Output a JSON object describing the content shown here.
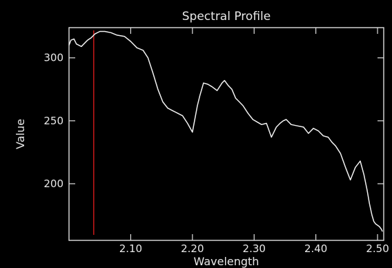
{
  "chart_data": {
    "type": "line",
    "title": "Spectral Profile",
    "xlabel": "Wavelength",
    "ylabel": "Value",
    "xlim": [
      2.0,
      2.51
    ],
    "ylim": [
      155,
      324
    ],
    "xticks": [
      2.1,
      2.2,
      2.3,
      2.4,
      2.5
    ],
    "xtick_labels": [
      "2.10",
      "2.20",
      "2.30",
      "2.40",
      "2.50"
    ],
    "yticks": [
      200,
      250,
      300
    ],
    "ytick_labels": [
      "200",
      "250",
      "300"
    ],
    "grid": false,
    "legend": "none",
    "colors": {
      "background": "#000000",
      "axes": "#e0e0e0",
      "series": "#f2f2f2",
      "marker_line": "#c01818"
    },
    "marker_x": 2.04,
    "series": [
      {
        "x": [
          2.0,
          2.003,
          2.008,
          2.012,
          2.02,
          2.03,
          2.036,
          2.042,
          2.05,
          2.058,
          2.068,
          2.078,
          2.09,
          2.1,
          2.11,
          2.12,
          2.128,
          2.136,
          2.144,
          2.152,
          2.16,
          2.168,
          2.176,
          2.184,
          2.192,
          2.2,
          2.208,
          2.212,
          2.218,
          2.225,
          2.232,
          2.24,
          2.248,
          2.252,
          2.258,
          2.264,
          2.27,
          2.276,
          2.282,
          2.29,
          2.298,
          2.305,
          2.312,
          2.32,
          2.328,
          2.336,
          2.342,
          2.347,
          2.352,
          2.36,
          2.37,
          2.38,
          2.388,
          2.396,
          2.404,
          2.412,
          2.42,
          2.426,
          2.432,
          2.44,
          2.448,
          2.456,
          2.464,
          2.472,
          2.478,
          2.483,
          2.487,
          2.491,
          2.494,
          2.497,
          2.5,
          2.503,
          2.506,
          2.508
        ],
        "values": [
          310,
          314,
          315,
          311,
          309,
          314,
          316,
          319,
          321,
          321,
          320,
          318,
          317,
          313,
          308,
          306,
          300,
          288,
          275,
          265,
          260,
          258,
          256,
          254,
          248,
          241,
          262,
          270,
          280,
          279,
          277,
          274,
          280,
          282,
          278,
          275,
          268,
          265,
          262,
          256,
          251,
          249,
          247,
          248,
          237,
          245,
          248,
          250,
          251,
          247,
          246,
          245,
          240,
          244,
          242,
          238,
          237,
          233,
          230,
          224,
          213,
          203,
          213,
          218,
          207,
          195,
          184,
          175,
          170,
          168,
          167,
          166,
          164,
          162
        ]
      }
    ]
  }
}
